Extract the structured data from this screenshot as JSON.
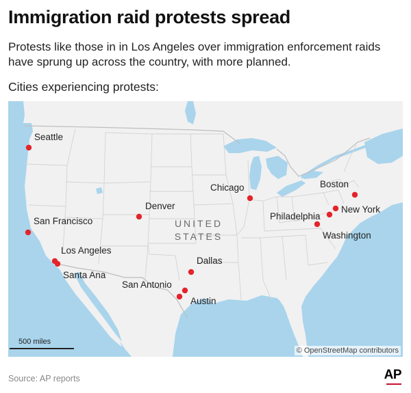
{
  "header": {
    "title": "Immigration raid protests spread",
    "subtitle": "Protests like those in in Los Angeles over immigration enforcement raids have sprung up across the country, with more planned.",
    "map_heading": "Cities experiencing protests:"
  },
  "map": {
    "country_label_line1": "UNITED",
    "country_label_line2": "STATES",
    "scale_label": "500 miles",
    "attribution": "© OpenStreetMap contributors",
    "colors": {
      "land": "#f1f1f1",
      "water": "#a9d4ec",
      "marker": "#e3242b",
      "borders": "#d3d3d3"
    },
    "cities": [
      {
        "name": "Seattle",
        "lat": 47.61,
        "lon": -122.33
      },
      {
        "name": "San Francisco",
        "lat": 37.77,
        "lon": -122.42
      },
      {
        "name": "Los Angeles",
        "lat": 34.05,
        "lon": -118.24
      },
      {
        "name": "Santa Ana",
        "lat": 33.75,
        "lon": -117.87
      },
      {
        "name": "Denver",
        "lat": 39.74,
        "lon": -104.99
      },
      {
        "name": "Dallas",
        "lat": 32.78,
        "lon": -96.8
      },
      {
        "name": "San Antonio",
        "lat": 29.42,
        "lon": -98.49
      },
      {
        "name": "Austin",
        "lat": 30.27,
        "lon": -97.74
      },
      {
        "name": "Chicago",
        "lat": 41.88,
        "lon": -87.63
      },
      {
        "name": "Boston",
        "lat": 42.36,
        "lon": -71.06
      },
      {
        "name": "New York",
        "lat": 40.71,
        "lon": -74.01
      },
      {
        "name": "Philadelphia",
        "lat": 39.95,
        "lon": -75.17
      },
      {
        "name": "Washington",
        "lat": 38.91,
        "lon": -77.04
      }
    ]
  },
  "footer": {
    "source": "Source: AP reports",
    "logo_text": "AP"
  }
}
